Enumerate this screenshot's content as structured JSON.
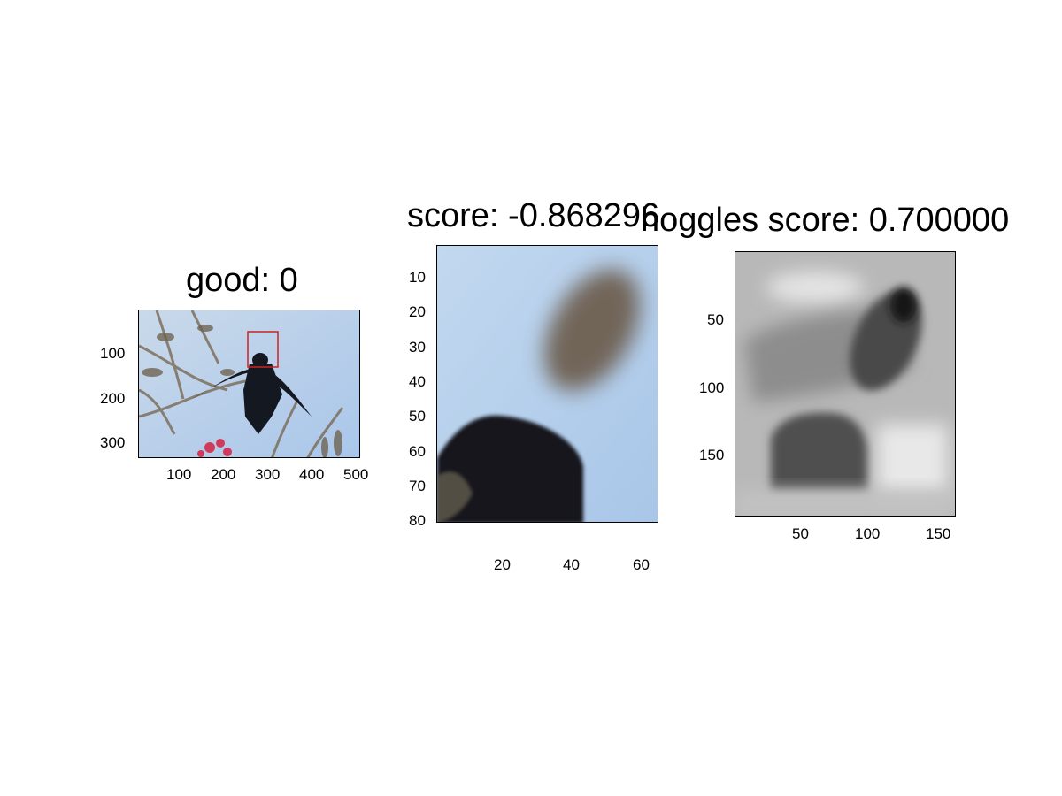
{
  "panels": [
    {
      "title": "good: 0",
      "content": "photo of a bird in flight against blue sky with branches and a red detection box",
      "x_ticks": [
        "100",
        "200",
        "300",
        "400",
        "500"
      ],
      "y_ticks": [
        "100",
        "200",
        "300"
      ],
      "box_color": "#cc2222"
    },
    {
      "title": "score: -0.868296",
      "content": "zoomed crop of bird head against blurred sky",
      "x_ticks": [
        "20",
        "40",
        "60"
      ],
      "y_ticks": [
        "10",
        "20",
        "30",
        "40",
        "50",
        "60",
        "70",
        "80"
      ]
    },
    {
      "title": "hoggles score: 0.700000",
      "content": "grayscale HOG inversion visualization",
      "x_ticks": [
        "50",
        "100",
        "150"
      ],
      "y_ticks": [
        "50",
        "100",
        "150"
      ]
    }
  ]
}
